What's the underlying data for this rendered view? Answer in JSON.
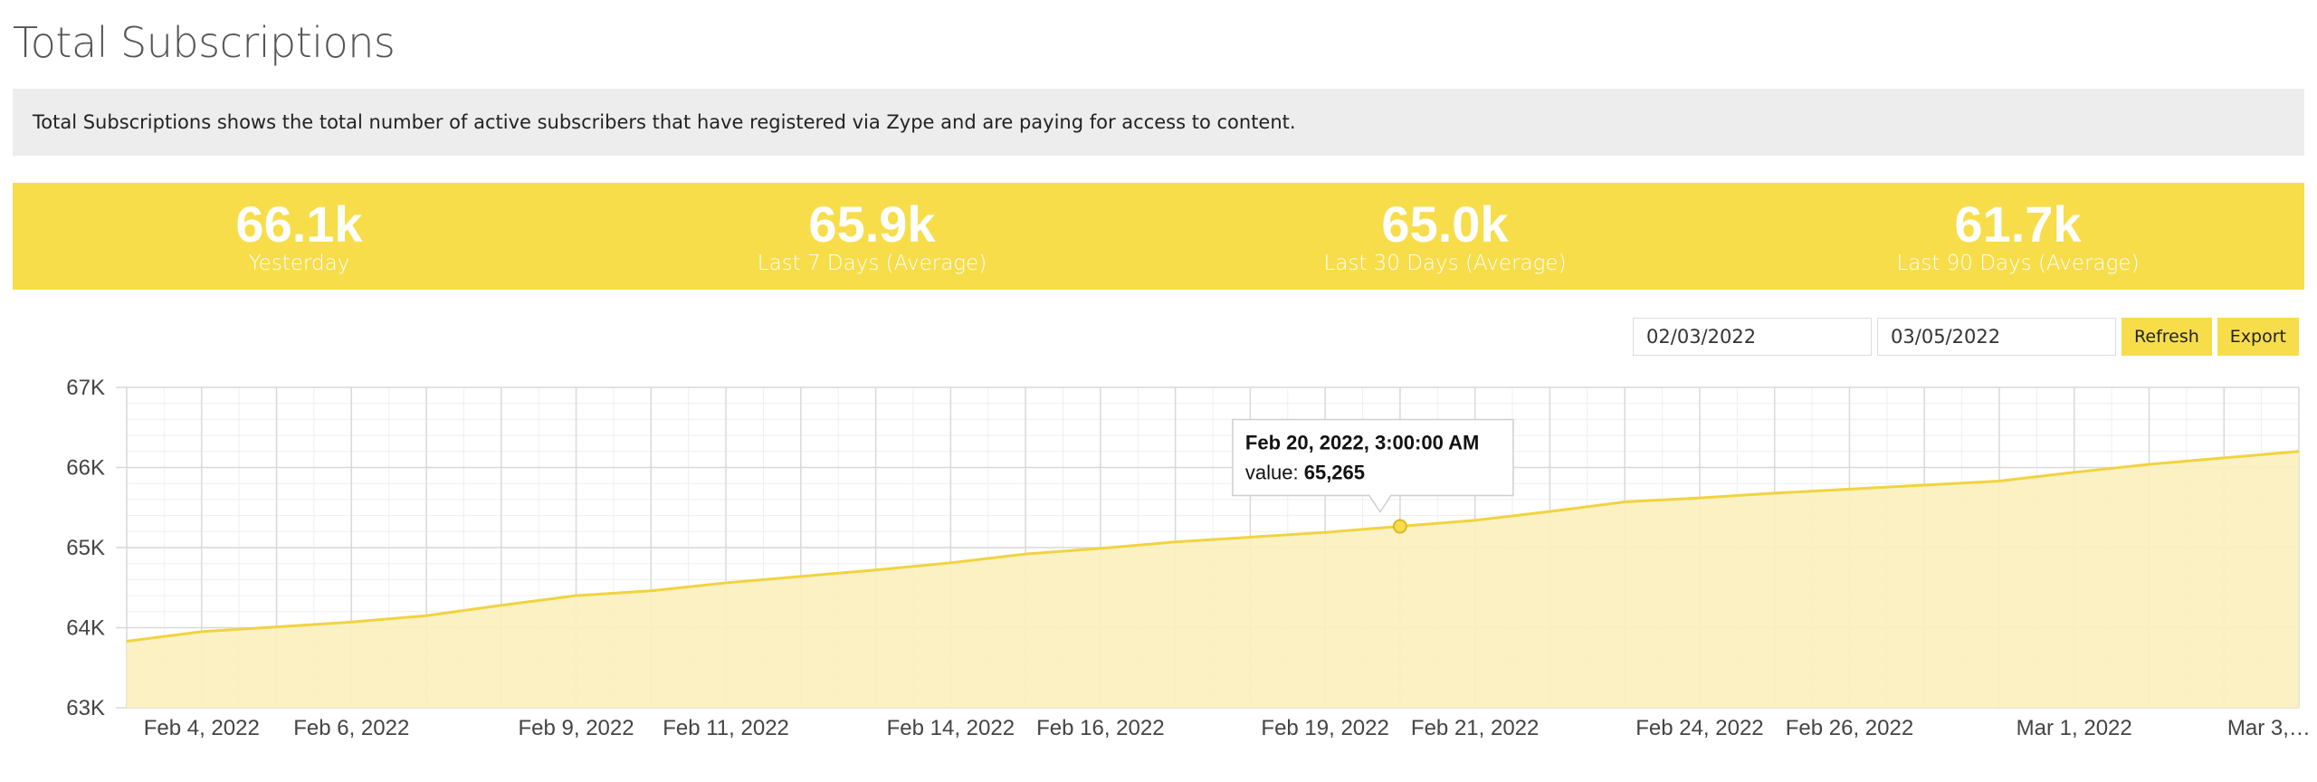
{
  "theme": {
    "accent": "#f7dd4a",
    "line": "#f1d33f",
    "fill": "#fbf0bc",
    "grid": "#d9d9d9",
    "grid_minor": "#efefef"
  },
  "page": {
    "title": "Total Subscriptions",
    "description": "Total Subscriptions shows the total number of active subscribers that have registered via Zype and are paying for access to content."
  },
  "stats": [
    {
      "value": "66.1k",
      "label": "Yesterday"
    },
    {
      "value": "65.9k",
      "label": "Last 7 Days (Average)"
    },
    {
      "value": "65.0k",
      "label": "Last 30 Days (Average)"
    },
    {
      "value": "61.7k",
      "label": "Last 90 Days (Average)"
    }
  ],
  "controls": {
    "start_date": "02/03/2022",
    "end_date": "03/05/2022",
    "refresh_label": "Refresh",
    "export_label": "Export"
  },
  "chart_data": {
    "type": "area",
    "ylim": [
      63000,
      67000
    ],
    "yticks": [
      63000,
      64000,
      65000,
      66000,
      67000
    ],
    "ytick_labels": [
      "63K",
      "64K",
      "65K",
      "66K",
      "67K"
    ],
    "xlim": [
      0,
      29
    ],
    "xtick_positions": [
      1,
      3,
      6,
      8,
      11,
      13,
      16,
      18,
      21,
      23,
      26,
      28.6
    ],
    "xtick_labels": [
      "Feb 4, 2022",
      "Feb 6, 2022",
      "Feb 9, 2022",
      "Feb 11, 2022",
      "Feb 14, 2022",
      "Feb 16, 2022",
      "Feb 19, 2022",
      "Feb 21, 2022",
      "Feb 24, 2022",
      "Feb 26, 2022",
      "Mar 1, 2022",
      "Mar 3,…"
    ],
    "x_dates": [
      "Feb 3, 2022",
      "Feb 4, 2022",
      "Feb 5, 2022",
      "Feb 6, 2022",
      "Feb 7, 2022",
      "Feb 8, 2022",
      "Feb 9, 2022",
      "Feb 10, 2022",
      "Feb 11, 2022",
      "Feb 12, 2022",
      "Feb 13, 2022",
      "Feb 14, 2022",
      "Feb 15, 2022",
      "Feb 16, 2022",
      "Feb 17, 2022",
      "Feb 18, 2022",
      "Feb 19, 2022",
      "Feb 20, 2022",
      "Feb 21, 2022",
      "Feb 22, 2022",
      "Feb 23, 2022",
      "Feb 24, 2022",
      "Feb 25, 2022",
      "Feb 26, 2022",
      "Feb 27, 2022",
      "Feb 28, 2022",
      "Mar 1, 2022",
      "Mar 2, 2022",
      "Mar 3, 2022",
      "Mar 4, 2022"
    ],
    "values": [
      63830,
      63950,
      64010,
      64070,
      64150,
      64280,
      64400,
      64460,
      64560,
      64640,
      64720,
      64810,
      64920,
      64990,
      65070,
      65130,
      65190,
      65265,
      65340,
      65450,
      65570,
      65620,
      65680,
      65730,
      65780,
      65830,
      65940,
      66040,
      66120,
      66200
    ],
    "tooltip": {
      "index": 17,
      "title": "Feb 20, 2022, 3:00:00 AM",
      "value_label": "value:",
      "value": "65,265"
    }
  }
}
